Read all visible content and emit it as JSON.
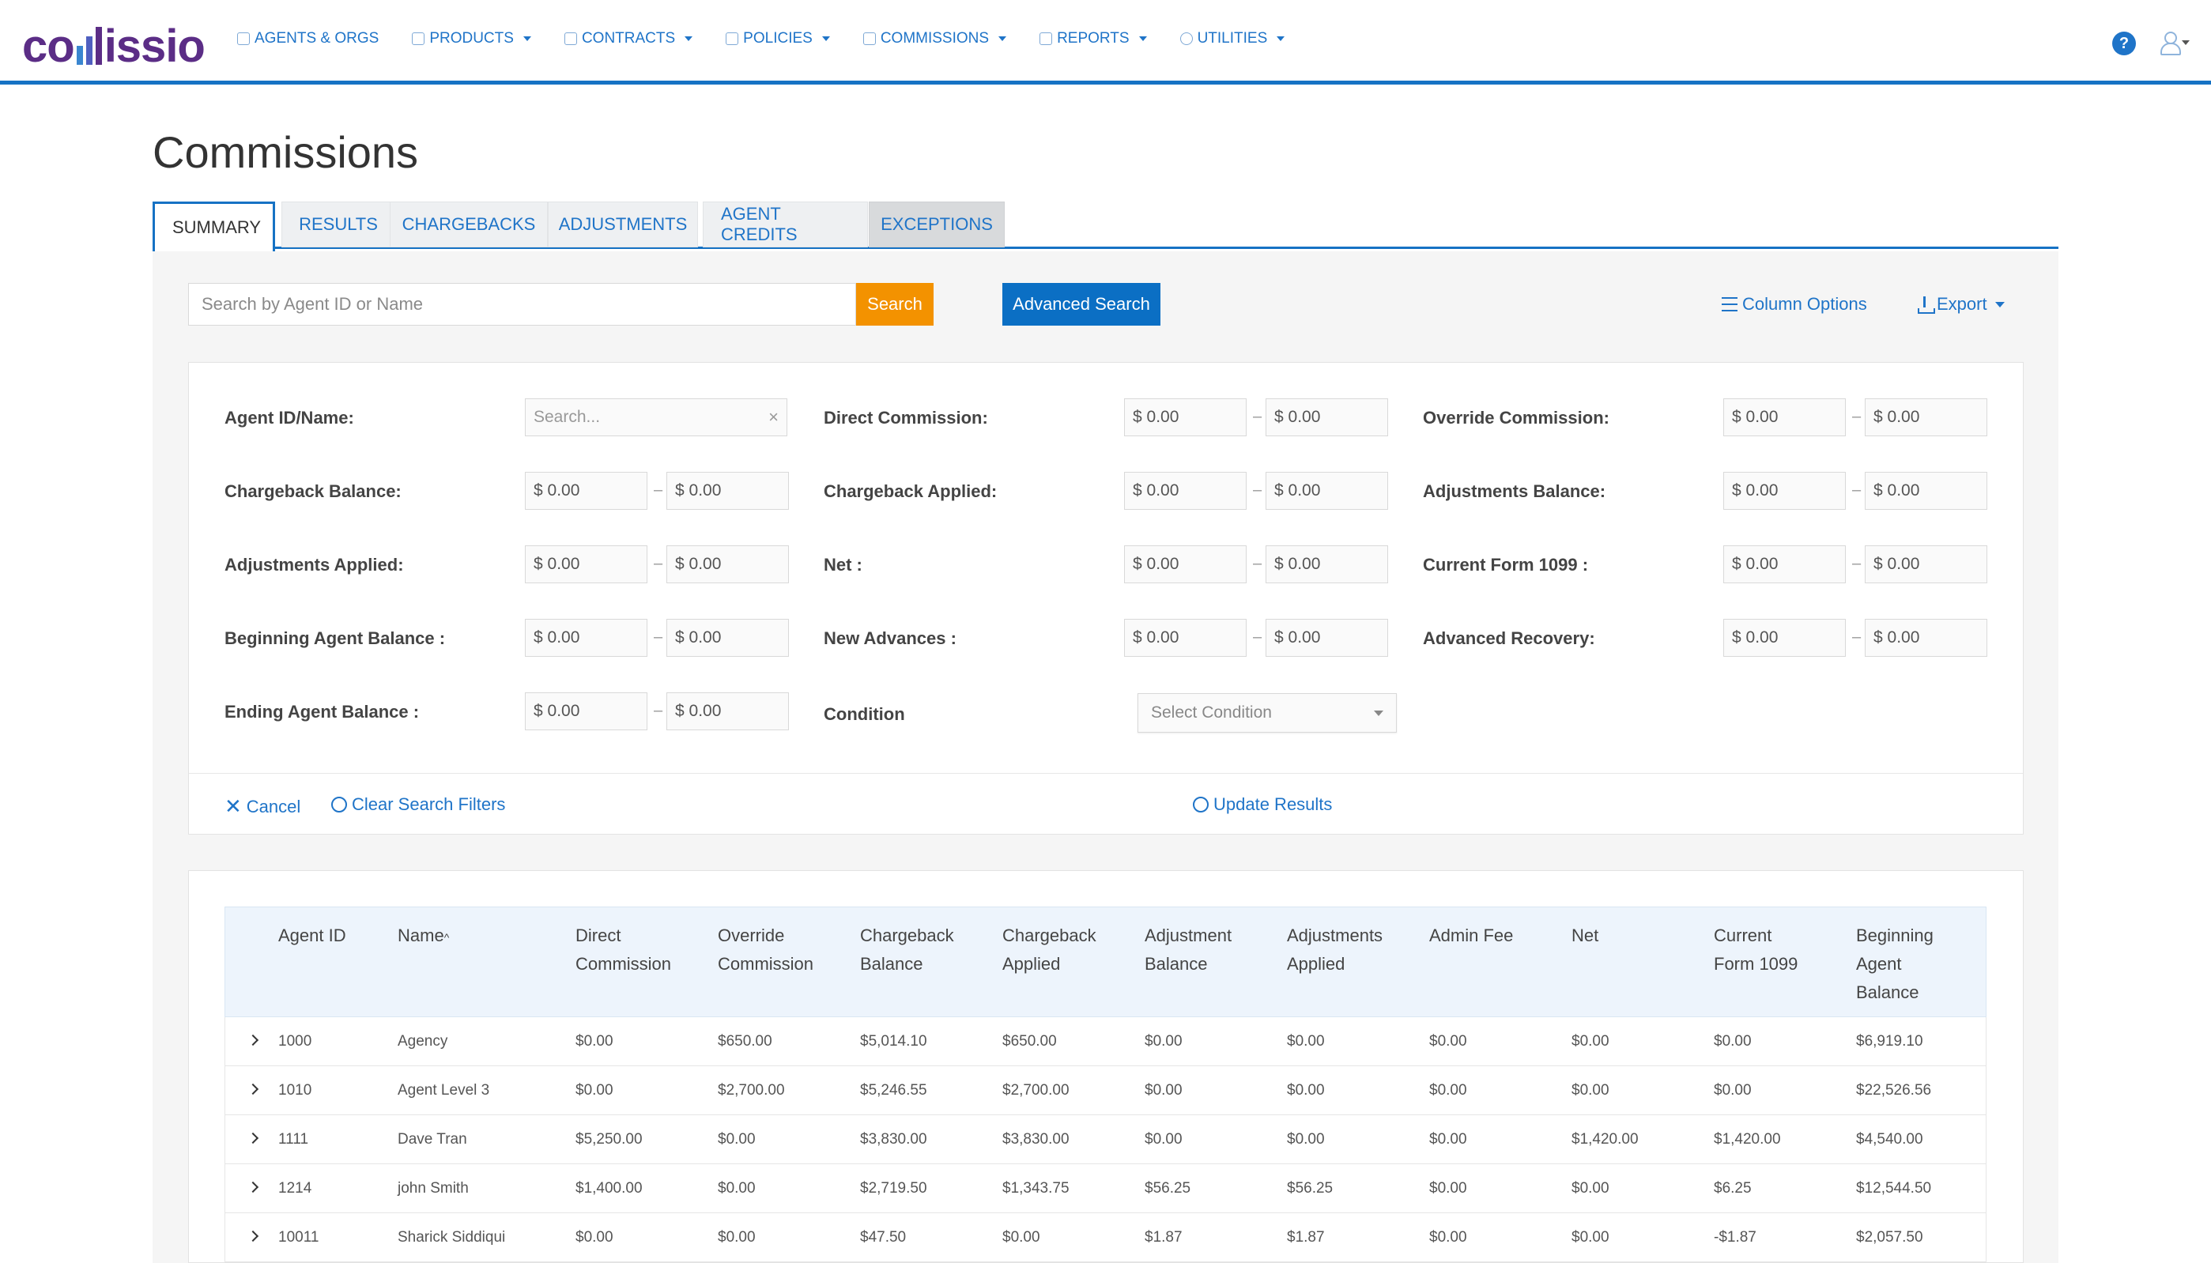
{
  "brand": {
    "logo_text_start": "co",
    "logo_text_end": "issio"
  },
  "nav": {
    "items": [
      {
        "label": "AGENTS & ORGS",
        "caret": false
      },
      {
        "label": "PRODUCTS",
        "caret": true
      },
      {
        "label": "CONTRACTS",
        "caret": true
      },
      {
        "label": "POLICIES",
        "caret": true
      },
      {
        "label": "COMMISSIONS",
        "caret": true
      },
      {
        "label": "REPORTS",
        "caret": true
      },
      {
        "label": "UTILITIES",
        "caret": true
      }
    ],
    "help": "?"
  },
  "page": {
    "title": "Commissions"
  },
  "tabs": [
    {
      "label": "SUMMARY"
    },
    {
      "label": "RESULTS"
    },
    {
      "label": "CHARGEBACKS"
    },
    {
      "label": "ADJUSTMENTS"
    },
    {
      "label": "AGENT CREDITS"
    },
    {
      "label": "EXCEPTIONS"
    }
  ],
  "toolbar": {
    "search_placeholder": "Search by Agent ID or Name",
    "search_label": "Search",
    "advanced_label": "Advanced Search",
    "column_options": "Column Options",
    "export": "Export"
  },
  "filters": {
    "agent_label": "Agent ID/Name:",
    "agent_placeholder": "Search...",
    "clear_x": "×",
    "dash": "–",
    "zero": "$ 0.00",
    "labels": {
      "direct_commission": "Direct Commission:",
      "override_commission": "Override Commission:",
      "chargeback_balance": "Chargeback Balance:",
      "chargeback_applied": "Chargeback Applied:",
      "adjustments_balance": "Adjustments Balance:",
      "adjustments_applied": "Adjustments Applied:",
      "net": "Net :",
      "current_form_1099": "Current Form 1099 :",
      "beginning_agent_balance": "Beginning Agent Balance :",
      "new_advances": "New Advances :",
      "advanced_recovery": "Advanced Recovery:",
      "ending_agent_balance": "Ending Agent Balance :",
      "condition": "Condition"
    },
    "condition_placeholder": "Select Condition",
    "cancel": "Cancel",
    "clear": "Clear Search Filters",
    "update": "Update Results"
  },
  "table": {
    "headers": {
      "agent_id": "Agent ID",
      "name": "Name",
      "direct_1": "Direct",
      "direct_2": "Commission",
      "override_1": "Override",
      "override_2": "Commission",
      "cb_bal_1": "Chargeback",
      "cb_bal_2": "Balance",
      "cb_app_1": "Chargeback",
      "cb_app_2": "Applied",
      "adj_bal_1": "Adjustment",
      "adj_bal_2": "Balance",
      "adj_app_1": "Adjustments",
      "adj_app_2": "Applied",
      "admin_fee": "Admin Fee",
      "net": "Net",
      "cur1099_1": "Current",
      "cur1099_2": "Form 1099",
      "beg_1": "Beginning",
      "beg_2": "Agent",
      "beg_3": "Balance"
    },
    "rows": [
      [
        "1000",
        "Agency",
        "$0.00",
        "$650.00",
        "$5,014.10",
        "$650.00",
        "$0.00",
        "$0.00",
        "$0.00",
        "$0.00",
        "$0.00",
        "$6,919.10"
      ],
      [
        "1010",
        "Agent Level 3",
        "$0.00",
        "$2,700.00",
        "$5,246.55",
        "$2,700.00",
        "$0.00",
        "$0.00",
        "$0.00",
        "$0.00",
        "$0.00",
        "$22,526.56"
      ],
      [
        "1111",
        "Dave Tran",
        "$5,250.00",
        "$0.00",
        "$3,830.00",
        "$3,830.00",
        "$0.00",
        "$0.00",
        "$0.00",
        "$1,420.00",
        "$1,420.00",
        "$4,540.00"
      ],
      [
        "1214",
        "john Smith",
        "$1,400.00",
        "$0.00",
        "$2,719.50",
        "$1,343.75",
        "$56.25",
        "$56.25",
        "$0.00",
        "$0.00",
        "$6.25",
        "$12,544.50"
      ],
      [
        "10011",
        "Sharick Siddiqui",
        "$0.00",
        "$0.00",
        "$47.50",
        "$0.00",
        "$1.87",
        "$1.87",
        "$0.00",
        "$0.00",
        "-$1.87",
        "$2,057.50"
      ]
    ]
  }
}
